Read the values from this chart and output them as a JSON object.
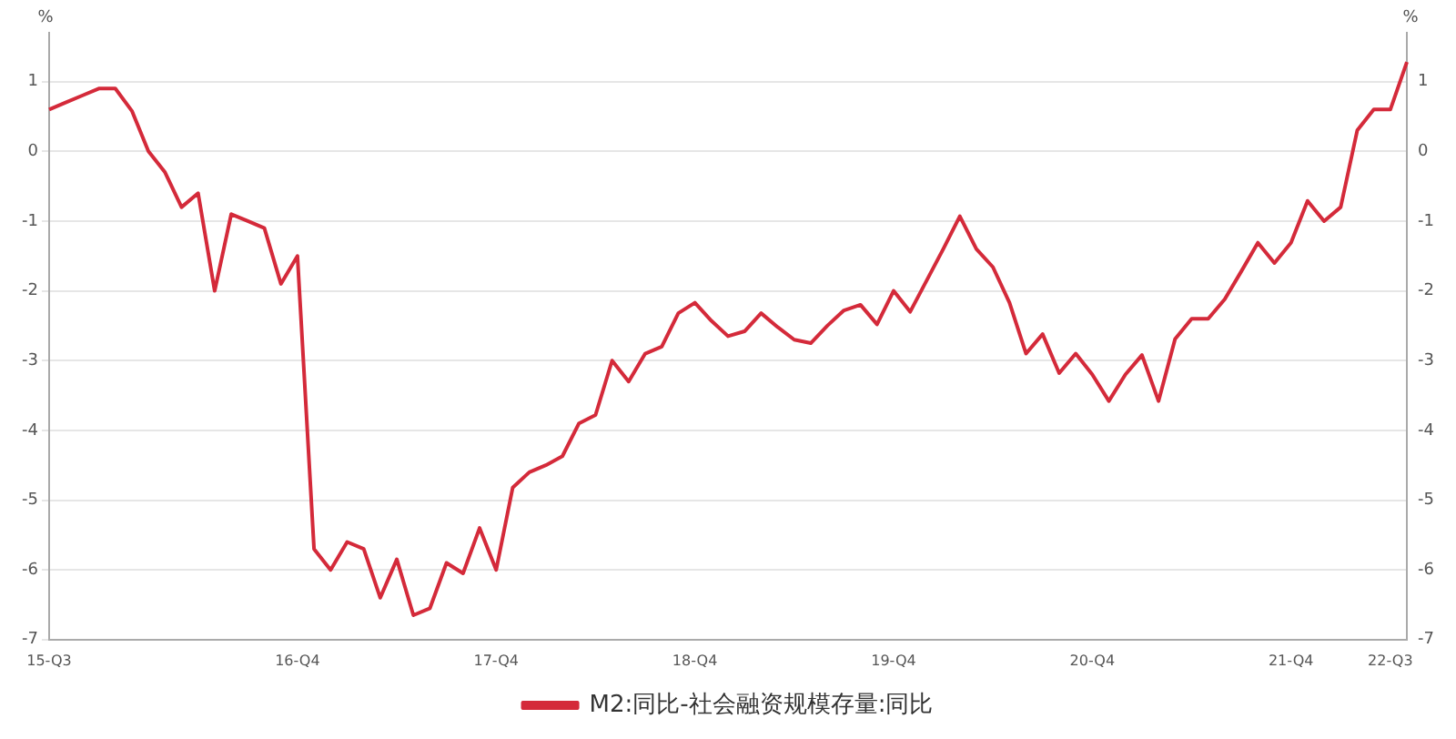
{
  "chart_data": {
    "type": "line",
    "ylabel": "%",
    "y2label": "%",
    "categories": [
      "15-Q3",
      null,
      null,
      null,
      null,
      null,
      null,
      null,
      null,
      null,
      null,
      null,
      null,
      null,
      null,
      "16-Q4",
      null,
      null,
      null,
      null,
      null,
      null,
      null,
      null,
      null,
      null,
      null,
      "17-Q4",
      null,
      null,
      null,
      null,
      null,
      null,
      null,
      null,
      null,
      null,
      null,
      "18-Q4",
      null,
      null,
      null,
      null,
      null,
      null,
      null,
      null,
      null,
      null,
      null,
      "19-Q4",
      null,
      null,
      null,
      null,
      null,
      null,
      null,
      null,
      null,
      null,
      null,
      "20-Q4",
      null,
      null,
      null,
      null,
      null,
      null,
      null,
      null,
      null,
      null,
      null,
      "21-Q4",
      null,
      null,
      null,
      null,
      null,
      "22-Q3",
      null
    ],
    "series": [
      {
        "name": "M2:同比-社会融资规模存量:同比",
        "color": "#d42a3a",
        "values": [
          0.6,
          0.7,
          0.8,
          0.9,
          0.9,
          0.58,
          0,
          -0.3,
          -0.8,
          -0.6,
          -2.0,
          -0.9,
          -1.0,
          -1.1,
          -1.9,
          -1.5,
          -5.7,
          -6.0,
          -5.6,
          -5.7,
          -6.4,
          -5.85,
          -6.65,
          -6.55,
          -5.9,
          -6.05,
          -5.4,
          -6.0,
          -4.82,
          -4.6,
          -4.5,
          -4.37,
          -3.9,
          -3.78,
          -3.0,
          -3.3,
          -2.9,
          -2.8,
          -2.32,
          -2.17,
          -2.43,
          -2.65,
          -2.58,
          -2.32,
          -2.52,
          -2.7,
          -2.75,
          -2.5,
          -2.28,
          -2.2,
          -2.48,
          -2.0,
          -2.3,
          -1.85,
          -1.4,
          -0.93,
          -1.4,
          -1.66,
          -2.17,
          -2.9,
          -2.62,
          -3.18,
          -2.9,
          -3.2,
          -3.58,
          -3.2,
          -2.92,
          -3.58,
          -2.69,
          -2.4,
          -2.4,
          -2.12,
          -1.72,
          -1.31,
          -1.6,
          -1.31,
          -0.71,
          -1.0,
          -0.8,
          0.3,
          0.6,
          0.6,
          1.28
        ]
      }
    ],
    "ylim": [
      -7,
      1.7
    ],
    "yticks": [
      -7,
      -6,
      -5,
      -4,
      -3,
      -2,
      -1,
      0,
      1
    ],
    "y2lim": [
      -7,
      1.7
    ],
    "y2ticks": [
      -7,
      -6,
      -5,
      -4,
      -3,
      -2,
      -1,
      0,
      1
    ],
    "grid": "y",
    "legend": "bottom",
    "marker": "none",
    "line_style": "solid"
  }
}
